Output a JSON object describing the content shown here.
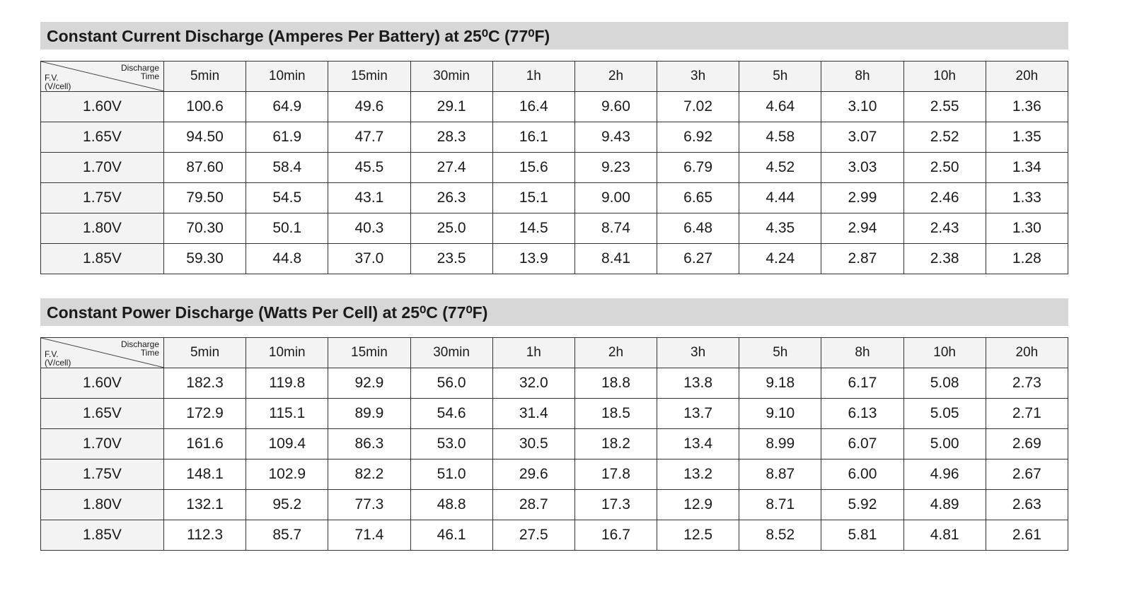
{
  "tables": [
    {
      "title": "Constant Current Discharge (Amperes Per Battery) at 25⁰C (77⁰F)",
      "corner": {
        "column_label": [
          "Discharge",
          "Time"
        ],
        "row_label": [
          "F.V.",
          "(V/cell)"
        ]
      },
      "columns": [
        "5min",
        "10min",
        "15min",
        "30min",
        "1h",
        "2h",
        "3h",
        "5h",
        "8h",
        "10h",
        "20h"
      ],
      "rows": [
        {
          "label": "1.60V",
          "values": [
            "100.6",
            "64.9",
            "49.6",
            "29.1",
            "16.4",
            "9.60",
            "7.02",
            "4.64",
            "3.10",
            "2.55",
            "1.36"
          ]
        },
        {
          "label": "1.65V",
          "values": [
            "94.50",
            "61.9",
            "47.7",
            "28.3",
            "16.1",
            "9.43",
            "6.92",
            "4.58",
            "3.07",
            "2.52",
            "1.35"
          ]
        },
        {
          "label": "1.70V",
          "values": [
            "87.60",
            "58.4",
            "45.5",
            "27.4",
            "15.6",
            "9.23",
            "6.79",
            "4.52",
            "3.03",
            "2.50",
            "1.34"
          ]
        },
        {
          "label": "1.75V",
          "values": [
            "79.50",
            "54.5",
            "43.1",
            "26.3",
            "15.1",
            "9.00",
            "6.65",
            "4.44",
            "2.99",
            "2.46",
            "1.33"
          ]
        },
        {
          "label": "1.80V",
          "values": [
            "70.30",
            "50.1",
            "40.3",
            "25.0",
            "14.5",
            "8.74",
            "6.48",
            "4.35",
            "2.94",
            "2.43",
            "1.30"
          ]
        },
        {
          "label": "1.85V",
          "values": [
            "59.30",
            "44.8",
            "37.0",
            "23.5",
            "13.9",
            "8.41",
            "6.27",
            "4.24",
            "2.87",
            "2.38",
            "1.28"
          ]
        }
      ]
    },
    {
      "title": "Constant Power Discharge (Watts Per Cell) at 25⁰C (77⁰F)",
      "corner": {
        "column_label": [
          "Discharge",
          "Time"
        ],
        "row_label": [
          "F.V.",
          "(V/cell)"
        ]
      },
      "columns": [
        "5min",
        "10min",
        "15min",
        "30min",
        "1h",
        "2h",
        "3h",
        "5h",
        "8h",
        "10h",
        "20h"
      ],
      "rows": [
        {
          "label": "1.60V",
          "values": [
            "182.3",
            "119.8",
            "92.9",
            "56.0",
            "32.0",
            "18.8",
            "13.8",
            "9.18",
            "6.17",
            "5.08",
            "2.73"
          ]
        },
        {
          "label": "1.65V",
          "values": [
            "172.9",
            "115.1",
            "89.9",
            "54.6",
            "31.4",
            "18.5",
            "13.7",
            "9.10",
            "6.13",
            "5.05",
            "2.71"
          ]
        },
        {
          "label": "1.70V",
          "values": [
            "161.6",
            "109.4",
            "86.3",
            "53.0",
            "30.5",
            "18.2",
            "13.4",
            "8.99",
            "6.07",
            "5.00",
            "2.69"
          ]
        },
        {
          "label": "1.75V",
          "values": [
            "148.1",
            "102.9",
            "82.2",
            "51.0",
            "29.6",
            "17.8",
            "13.2",
            "8.87",
            "6.00",
            "4.96",
            "2.67"
          ]
        },
        {
          "label": "1.80V",
          "values": [
            "132.1",
            "95.2",
            "77.3",
            "48.8",
            "28.7",
            "17.3",
            "12.9",
            "8.71",
            "5.92",
            "4.89",
            "2.63"
          ]
        },
        {
          "label": "1.85V",
          "values": [
            "112.3",
            "85.7",
            "71.4",
            "46.1",
            "27.5",
            "16.7",
            "12.5",
            "8.52",
            "5.81",
            "4.81",
            "2.61"
          ]
        }
      ]
    }
  ]
}
